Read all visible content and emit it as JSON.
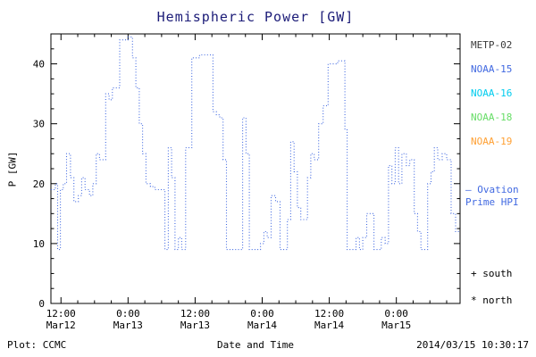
{
  "title": "Hemispheric Power [GW]",
  "ylabel": "P [GW]",
  "xlabel": "Date and Time",
  "footer": {
    "left": "Plot: CCMC",
    "right": "2014/03/15 10:30:17"
  },
  "colors": {
    "title": "#1c1c78",
    "axis": "#000000",
    "line": "#4169e1"
  },
  "legend": {
    "satellites": [
      {
        "label": "METP-02",
        "color": "#3a3a3a"
      },
      {
        "label": "NOAA-15",
        "color": "#4169e1"
      },
      {
        "label": "NOAA-16",
        "color": "#00ccee"
      },
      {
        "label": "NOAA-18",
        "color": "#66dd66"
      },
      {
        "label": "NOAA-19",
        "color": "#ffa033"
      }
    ],
    "ovation": {
      "line1": "– Ovation",
      "line2": "Prime HPI",
      "color": "#4169e1"
    },
    "markers": [
      {
        "symbol": "+",
        "label": "south"
      },
      {
        "symbol": "*",
        "label": "north"
      }
    ]
  },
  "chart_data": {
    "type": "line",
    "line_style": "dotted-step",
    "series_name": "Ovation Prime HPI",
    "series_color": "#4169e1",
    "title": "Hemispheric Power [GW]",
    "xlabel": "Date and Time",
    "ylabel": "P [GW]",
    "x_unit": "hours from 2014-03-12 00:00 UT",
    "x_range": [
      10.2,
      83.4
    ],
    "ylim": [
      0,
      45
    ],
    "y_ticks": [
      0,
      10,
      20,
      30,
      40
    ],
    "x_ticks": [
      {
        "t": 12,
        "time": "12:00",
        "date": "Mar12"
      },
      {
        "t": 24,
        "time": "0:00",
        "date": "Mar13"
      },
      {
        "t": 36,
        "time": "12:00",
        "date": "Mar13"
      },
      {
        "t": 48,
        "time": "0:00",
        "date": "Mar14"
      },
      {
        "t": 60,
        "time": "12:00",
        "date": "Mar14"
      },
      {
        "t": 72,
        "time": "0:00",
        "date": "Mar15"
      }
    ],
    "points": [
      [
        10.2,
        19
      ],
      [
        11,
        20
      ],
      [
        11.4,
        9
      ],
      [
        11.9,
        19
      ],
      [
        12.4,
        20
      ],
      [
        13,
        25
      ],
      [
        13.7,
        21
      ],
      [
        14.3,
        17
      ],
      [
        15.1,
        18
      ],
      [
        15.7,
        21
      ],
      [
        16.3,
        19
      ],
      [
        17.1,
        18
      ],
      [
        17.7,
        20
      ],
      [
        18.3,
        25
      ],
      [
        18.9,
        24
      ],
      [
        20,
        35
      ],
      [
        20.6,
        34
      ],
      [
        21.2,
        36
      ],
      [
        22.5,
        44
      ],
      [
        24,
        44.5
      ],
      [
        24.8,
        41
      ],
      [
        25.4,
        36
      ],
      [
        26,
        30
      ],
      [
        26.6,
        25
      ],
      [
        27.2,
        20
      ],
      [
        28,
        19.5
      ],
      [
        28.8,
        19
      ],
      [
        30.6,
        9
      ],
      [
        31.2,
        26
      ],
      [
        31.8,
        21
      ],
      [
        32.4,
        9
      ],
      [
        33,
        11
      ],
      [
        33.6,
        9
      ],
      [
        34.3,
        26
      ],
      [
        35.4,
        41
      ],
      [
        36.8,
        41.5
      ],
      [
        39.2,
        32
      ],
      [
        39.8,
        31.5
      ],
      [
        40.4,
        31
      ],
      [
        41,
        24
      ],
      [
        41.6,
        9
      ],
      [
        44.5,
        31
      ],
      [
        45.1,
        25
      ],
      [
        45.7,
        9
      ],
      [
        47.7,
        10
      ],
      [
        48.3,
        12
      ],
      [
        48.9,
        11
      ],
      [
        49.6,
        18
      ],
      [
        50.4,
        17
      ],
      [
        51.2,
        9
      ],
      [
        52.5,
        14
      ],
      [
        53.1,
        27
      ],
      [
        53.7,
        22
      ],
      [
        54.3,
        16
      ],
      [
        54.9,
        14
      ],
      [
        56.1,
        21
      ],
      [
        56.7,
        25
      ],
      [
        57.3,
        24
      ],
      [
        58.1,
        30
      ],
      [
        58.9,
        33
      ],
      [
        59.8,
        40
      ],
      [
        61.5,
        40.5
      ],
      [
        62.8,
        29
      ],
      [
        63.2,
        9
      ],
      [
        64.8,
        11
      ],
      [
        65.4,
        9
      ],
      [
        66,
        11
      ],
      [
        66.7,
        15
      ],
      [
        67.5,
        15
      ],
      [
        68,
        9
      ],
      [
        69.3,
        11
      ],
      [
        70,
        10
      ],
      [
        70.6,
        23
      ],
      [
        71.2,
        20
      ],
      [
        71.8,
        26
      ],
      [
        72.4,
        20
      ],
      [
        73,
        25
      ],
      [
        73.8,
        23
      ],
      [
        74.4,
        24
      ],
      [
        75.2,
        15
      ],
      [
        75.8,
        12
      ],
      [
        76.4,
        9
      ],
      [
        77.6,
        20
      ],
      [
        78.2,
        22
      ],
      [
        78.8,
        26
      ],
      [
        79.4,
        24
      ],
      [
        80.2,
        25
      ],
      [
        81,
        24
      ],
      [
        81.8,
        15
      ],
      [
        82.6,
        12
      ],
      [
        83.4,
        12
      ]
    ]
  }
}
